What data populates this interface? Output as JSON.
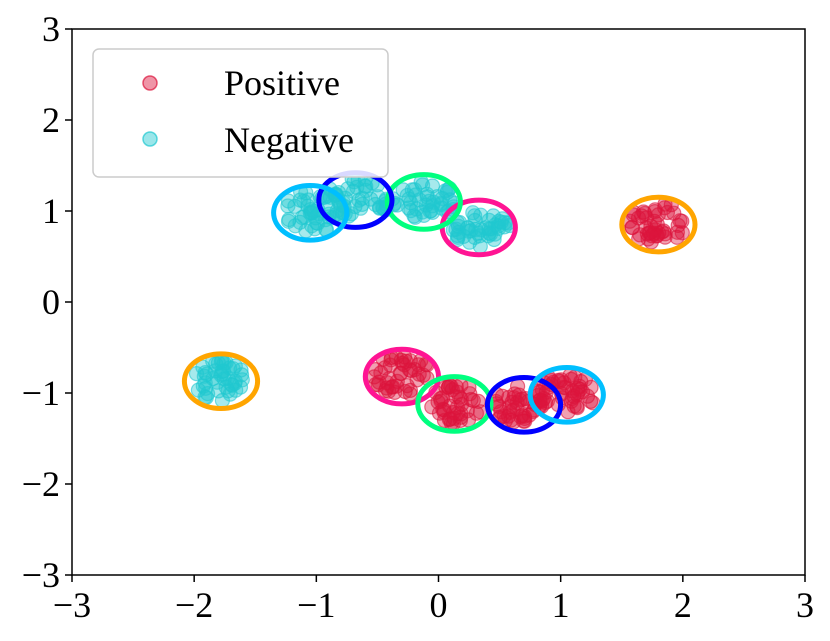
{
  "chart_data": {
    "type": "scatter",
    "title": "",
    "xlabel": "",
    "ylabel": "",
    "xlim": [
      -3,
      3
    ],
    "ylim": [
      -3,
      3
    ],
    "xticks": [
      -3,
      -2,
      -1,
      0,
      1,
      2,
      3
    ],
    "yticks": [
      -3,
      -2,
      -1,
      0,
      1,
      2,
      3
    ],
    "xtick_labels": [
      "−3",
      "−2",
      "−1",
      "0",
      "1",
      "2",
      "3"
    ],
    "ytick_labels": [
      "−3",
      "−2",
      "−1",
      "0",
      "1",
      "2",
      "3"
    ],
    "legend_position": "top-left",
    "series": [
      {
        "name": "Positive",
        "color": "#dc143c",
        "clusters": [
          {
            "cx": 1.8,
            "cy": 0.87,
            "rx": 0.24,
            "ry": 0.24
          },
          {
            "cx": -0.3,
            "cy": -0.8,
            "rx": 0.25,
            "ry": 0.22
          },
          {
            "cx": 0.15,
            "cy": -1.12,
            "rx": 0.22,
            "ry": 0.22
          },
          {
            "cx": 0.65,
            "cy": -1.12,
            "rx": 0.22,
            "ry": 0.22
          },
          {
            "cx": 1.05,
            "cy": -1.0,
            "rx": 0.25,
            "ry": 0.22
          }
        ]
      },
      {
        "name": "Negative",
        "color": "#20c8d0",
        "clusters": [
          {
            "cx": -1.0,
            "cy": 1.0,
            "rx": 0.28,
            "ry": 0.24
          },
          {
            "cx": -0.65,
            "cy": 1.15,
            "rx": 0.28,
            "ry": 0.22
          },
          {
            "cx": -0.1,
            "cy": 1.12,
            "rx": 0.28,
            "ry": 0.22
          },
          {
            "cx": 0.35,
            "cy": 0.8,
            "rx": 0.25,
            "ry": 0.2
          },
          {
            "cx": -1.8,
            "cy": -0.85,
            "rx": 0.22,
            "ry": 0.24
          }
        ]
      }
    ],
    "ellipses": [
      {
        "cx": 1.8,
        "cy": 0.85,
        "rx": 0.3,
        "ry": 0.3,
        "color": "#ffa500"
      },
      {
        "cx": -1.78,
        "cy": -0.87,
        "rx": 0.3,
        "ry": 0.3,
        "color": "#ffa500"
      },
      {
        "cx": -0.3,
        "cy": -0.82,
        "rx": 0.3,
        "ry": 0.3,
        "color": "#ff1493"
      },
      {
        "cx": 0.33,
        "cy": 0.82,
        "rx": 0.3,
        "ry": 0.3,
        "color": "#ff1493"
      },
      {
        "cx": 0.13,
        "cy": -1.12,
        "rx": 0.3,
        "ry": 0.3,
        "color": "#00ff7f"
      },
      {
        "cx": -0.12,
        "cy": 1.1,
        "rx": 0.3,
        "ry": 0.3,
        "color": "#00ff7f"
      },
      {
        "cx": 0.7,
        "cy": -1.13,
        "rx": 0.3,
        "ry": 0.3,
        "color": "#0000ff"
      },
      {
        "cx": -0.68,
        "cy": 1.12,
        "rx": 0.3,
        "ry": 0.3,
        "color": "#0000ff"
      },
      {
        "cx": 1.05,
        "cy": -1.02,
        "rx": 0.3,
        "ry": 0.3,
        "color": "#00bfff"
      },
      {
        "cx": -1.05,
        "cy": 0.98,
        "rx": 0.3,
        "ry": 0.3,
        "color": "#00bfff"
      }
    ]
  },
  "legend": {
    "entries": [
      {
        "label": "Positive",
        "color": "#dc143c"
      },
      {
        "label": "Negative",
        "color": "#20c8d0"
      }
    ]
  }
}
